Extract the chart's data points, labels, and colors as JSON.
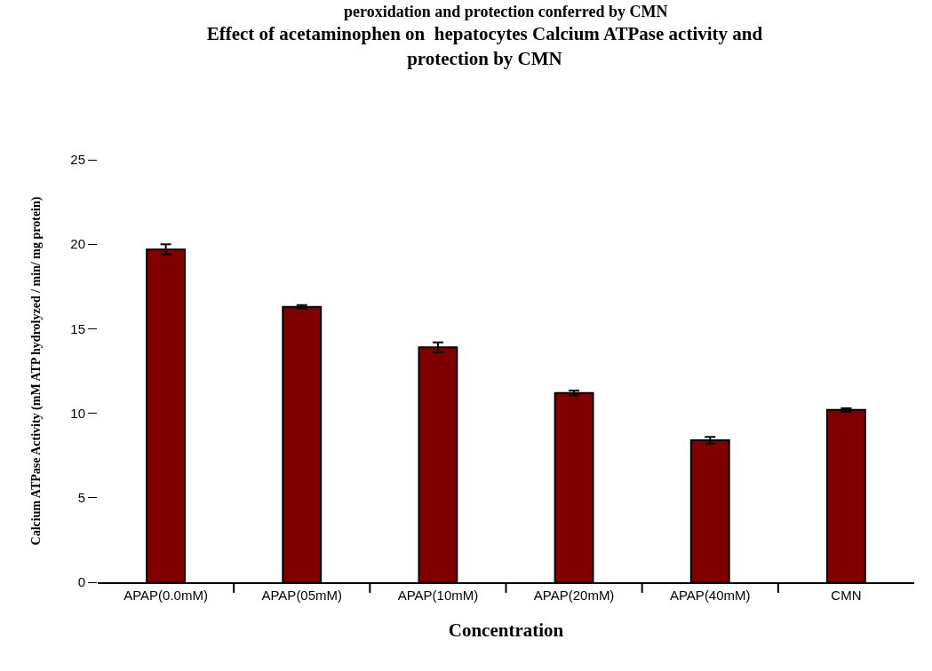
{
  "chart_data": {
    "type": "bar",
    "title": "Effect of acetaminophen on  hepatocytes Calcium ATPase activity and protection by CMN",
    "xlabel": "Concentration",
    "ylabel": "Calcium ATPase Activity (mM ATP hydrolyzed / min/ mg protein)",
    "annotations": [
      "peroxidation and protection conferred by CMN"
    ],
    "categories": [
      "APAP(0.0mM)",
      "APAP(05mM)",
      "APAP(10mM)",
      "APAP(20mM)",
      "APAP(40mM)",
      "CMN"
    ],
    "values": [
      19.7,
      16.3,
      13.9,
      11.2,
      8.4,
      10.2
    ],
    "errors": [
      0.3,
      0.1,
      0.3,
      0.15,
      0.2,
      0.1
    ],
    "color": "#800000",
    "ylim": [
      0,
      25
    ],
    "yticks": [
      0,
      5,
      10,
      15,
      20,
      25
    ],
    "legend": false
  }
}
